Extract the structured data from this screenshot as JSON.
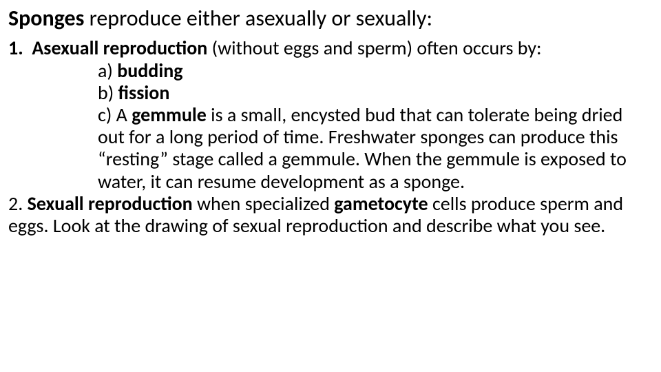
{
  "title": {
    "bold": "Sponges",
    "rest": " reproduce either asexually or sexually:"
  },
  "item1": {
    "num": "1.",
    "lead_bold": "Asexuall reproduction",
    "lead_rest": " (without eggs and sperm) often occurs by:",
    "a_pre": "a) ",
    "a_bold": "budding",
    "b_pre": "b) ",
    "b_bold": "fission",
    "c_pre": "c) A ",
    "c_bold": "gemmule",
    "c_rest": " is a small, encysted bud that can tolerate being dried out for a long period of time. Freshwater sponges can produce this “resting” stage called a gemmule. When the  gemmule is exposed to water, it can resume development as a sponge."
  },
  "item2": {
    "pre": "2. ",
    "bold1": "Sexuall reproduction",
    "mid1": " when specialized ",
    "bold2": "gametocyte",
    "rest": " cells produce sperm and eggs. Look at the drawing of sexual reproduction and describe what you see."
  }
}
